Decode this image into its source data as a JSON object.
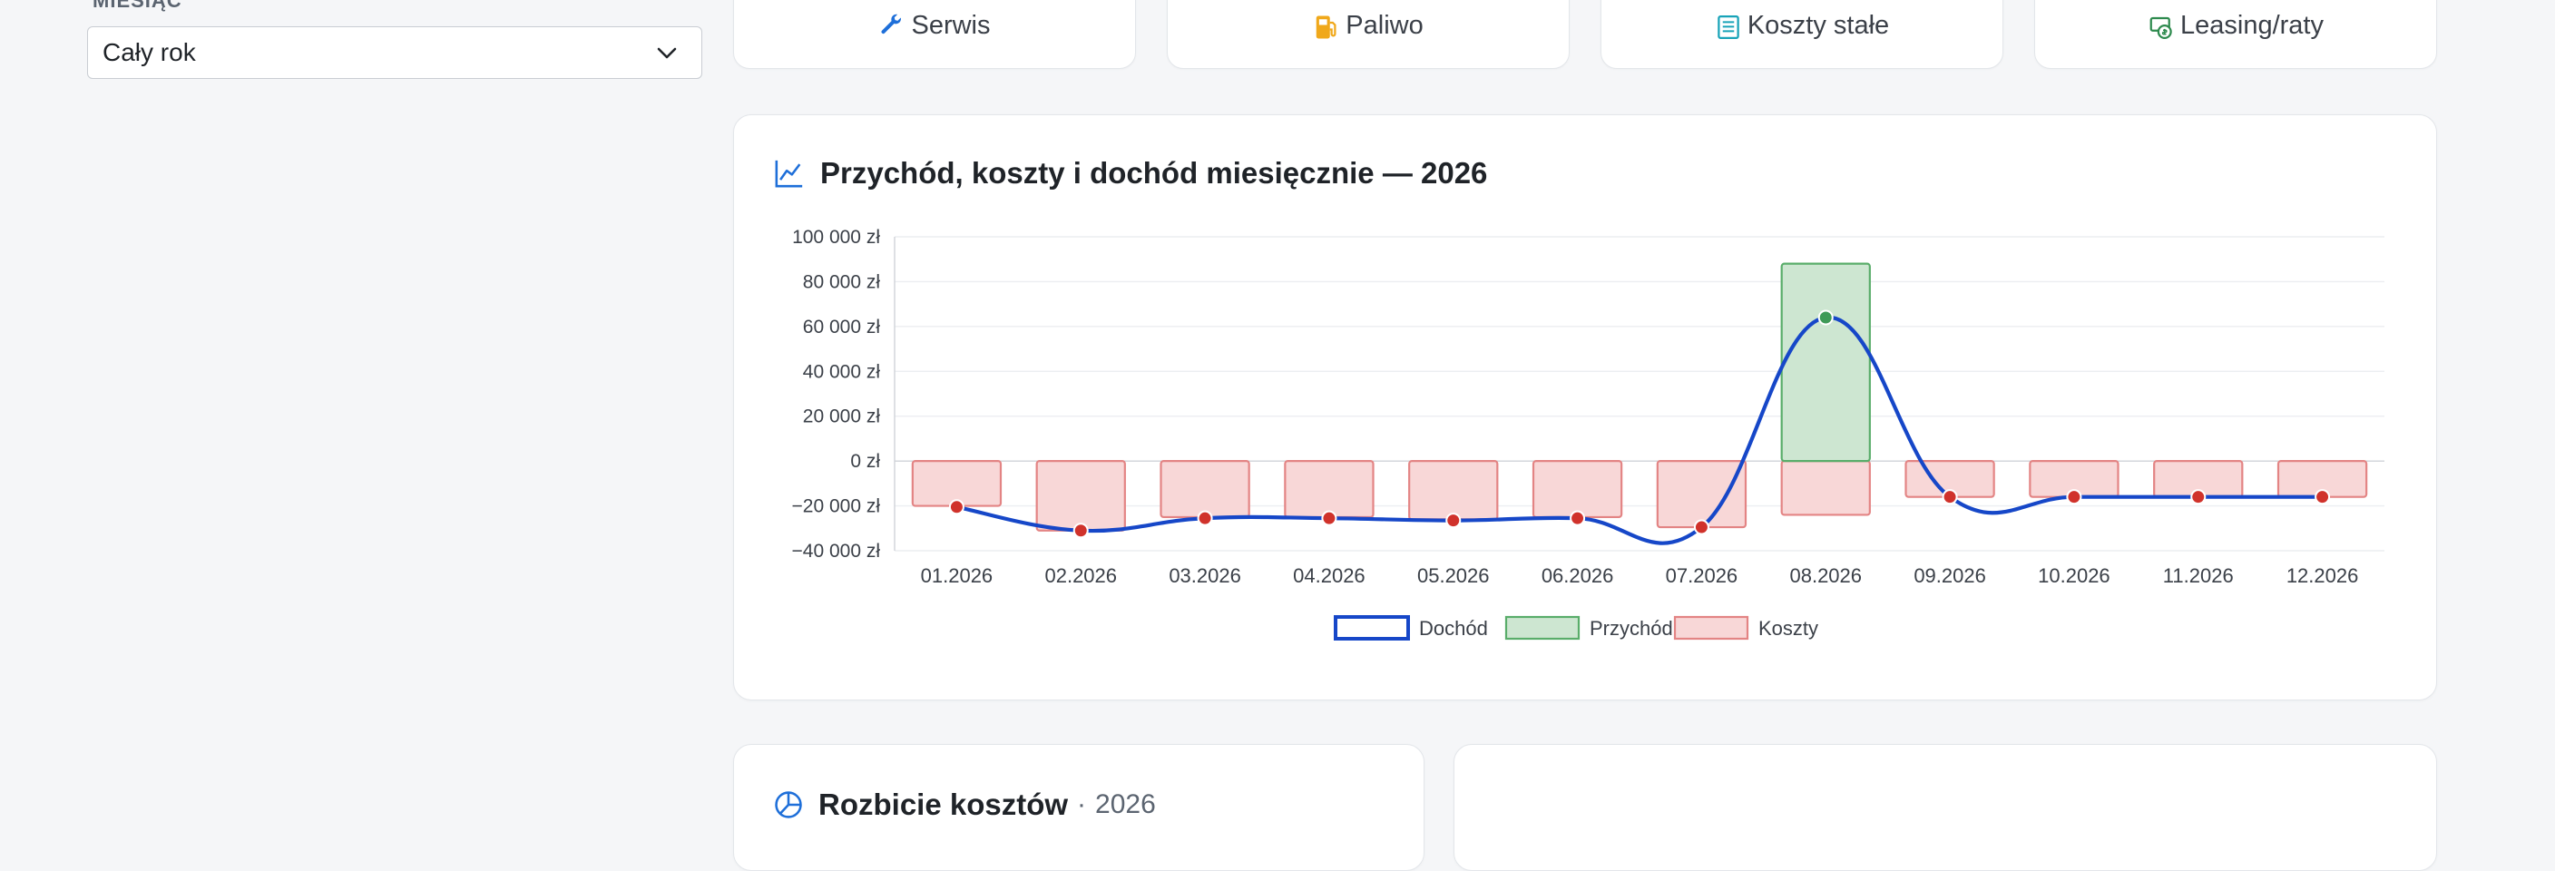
{
  "filter": {
    "month_label": "MIESIĄC",
    "month_value": "Cały rok"
  },
  "tabs": [
    {
      "label": "Serwis",
      "icon": "wrench-icon",
      "color": "#1e6fd9"
    },
    {
      "label": "Paliwo",
      "icon": "fuel-pump-icon",
      "color": "#f0a81a"
    },
    {
      "label": "Koszty stałe",
      "icon": "list-document-icon",
      "color": "#18a3b8"
    },
    {
      "label": "Leasing/raty",
      "icon": "money-cycle-icon",
      "color": "#2e8a4e"
    }
  ],
  "monthly_panel": {
    "title": "Przychód, koszty i dochód miesięcznie — 2026",
    "icon": "line-chart-icon"
  },
  "breakdown_panel": {
    "title": "Rozbicie kosztów",
    "separator": "·",
    "year": "2026",
    "icon": "pie-chart-icon"
  },
  "colors": {
    "income_line": "#1647c8",
    "revenue_fill": "#cde6d1",
    "revenue_stroke": "#59ad6a",
    "cost_fill": "#f8d7d7",
    "cost_stroke": "#e38484",
    "point_red": "#d0322b",
    "point_green": "#3e9a57",
    "accent": "#1e6fd9"
  },
  "chart_data": {
    "type": "bar",
    "categories": [
      "01.2026",
      "02.2026",
      "03.2026",
      "04.2026",
      "05.2026",
      "06.2026",
      "07.2026",
      "08.2026",
      "09.2026",
      "10.2026",
      "11.2026",
      "12.2026"
    ],
    "series": [
      {
        "name": "Dochód",
        "kind": "line",
        "values": [
          -20500,
          -31000,
          -25500,
          -25500,
          -26500,
          -25500,
          -29500,
          64000,
          -16000,
          -16000,
          -16000,
          -16000
        ]
      },
      {
        "name": "Przychód",
        "kind": "bar",
        "values": [
          0,
          0,
          0,
          0,
          0,
          0,
          0,
          88000,
          0,
          0,
          0,
          0
        ]
      },
      {
        "name": "Koszty",
        "kind": "bar",
        "values": [
          -20000,
          -31000,
          -25000,
          -25000,
          -26000,
          -25000,
          -29500,
          -24000,
          -16000,
          -16000,
          -16000,
          -16000
        ]
      }
    ],
    "y_ticks": [
      "100 000 zł",
      "80 000 zł",
      "60 000 zł",
      "40 000 zł",
      "20 000 zł",
      "0 zł",
      "−20 000 zł",
      "−40 000 zł"
    ],
    "y_tick_values": [
      100000,
      80000,
      60000,
      40000,
      20000,
      0,
      -20000,
      -40000
    ],
    "ylim": [
      -40000,
      100000
    ],
    "grid": true,
    "legend_position": "bottom"
  }
}
